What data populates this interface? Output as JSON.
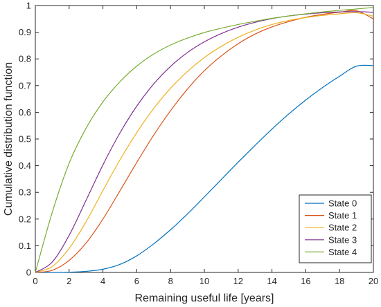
{
  "chart_data": {
    "type": "line",
    "xlabel": "Remaining useful life [years]",
    "ylabel": "Cumulative distribution function",
    "xlim": [
      0,
      20
    ],
    "ylim": [
      0,
      1
    ],
    "xticks": [
      0,
      2,
      4,
      6,
      8,
      10,
      12,
      14,
      16,
      18,
      20
    ],
    "yticks": [
      0,
      0.1,
      0.2,
      0.3,
      0.4,
      0.5,
      0.6,
      0.7,
      0.8,
      0.9,
      1
    ],
    "xtick_labels": [
      "0",
      "2",
      "4",
      "6",
      "8",
      "10",
      "12",
      "14",
      "16",
      "18",
      "20"
    ],
    "ytick_labels": [
      "0",
      "0.1",
      "0.2",
      "0.3",
      "0.4",
      "0.5",
      "0.6",
      "0.7",
      "0.8",
      "0.9",
      "1"
    ],
    "grid": false,
    "legend_position": "bottom-right",
    "x": [
      0,
      1,
      2,
      3,
      4,
      5,
      6,
      7,
      8,
      9,
      10,
      11,
      12,
      13,
      14,
      15,
      16,
      17,
      18,
      19,
      20
    ],
    "series": [
      {
        "name": "State 0",
        "color": "#0072BD",
        "values": [
          0,
          0.0,
          0.001,
          0.004,
          0.012,
          0.03,
          0.062,
          0.107,
          0.16,
          0.219,
          0.283,
          0.348,
          0.413,
          0.476,
          0.537,
          0.594,
          0.646,
          0.693,
          0.735,
          0.773,
          0.775
        ]
      },
      {
        "name": "State 1",
        "color": "#D95319",
        "values": [
          0,
          0.008,
          0.045,
          0.11,
          0.2,
          0.305,
          0.412,
          0.514,
          0.606,
          0.687,
          0.756,
          0.811,
          0.857,
          0.893,
          0.92,
          0.94,
          0.956,
          0.967,
          0.975,
          0.98,
          0.95
        ]
      },
      {
        "name": "State 2",
        "color": "#EDB120",
        "values": [
          0,
          0.022,
          0.09,
          0.19,
          0.307,
          0.421,
          0.524,
          0.614,
          0.69,
          0.753,
          0.805,
          0.847,
          0.881,
          0.908,
          0.929,
          0.944,
          0.955,
          0.963,
          0.969,
          0.973,
          0.96
        ]
      },
      {
        "name": "State 3",
        "color": "#7E2F8E",
        "values": [
          0,
          0.039,
          0.139,
          0.27,
          0.403,
          0.522,
          0.623,
          0.706,
          0.772,
          0.824,
          0.864,
          0.895,
          0.919,
          0.937,
          0.951,
          0.961,
          0.968,
          0.973,
          0.976,
          0.977,
          0.975
        ]
      },
      {
        "name": "State 4",
        "color": "#77AC30",
        "values": [
          0,
          0.225,
          0.409,
          0.54,
          0.639,
          0.714,
          0.773,
          0.818,
          0.852,
          0.878,
          0.899,
          0.915,
          0.929,
          0.941,
          0.952,
          0.961,
          0.969,
          0.976,
          0.982,
          0.987,
          0.993
        ]
      }
    ]
  }
}
